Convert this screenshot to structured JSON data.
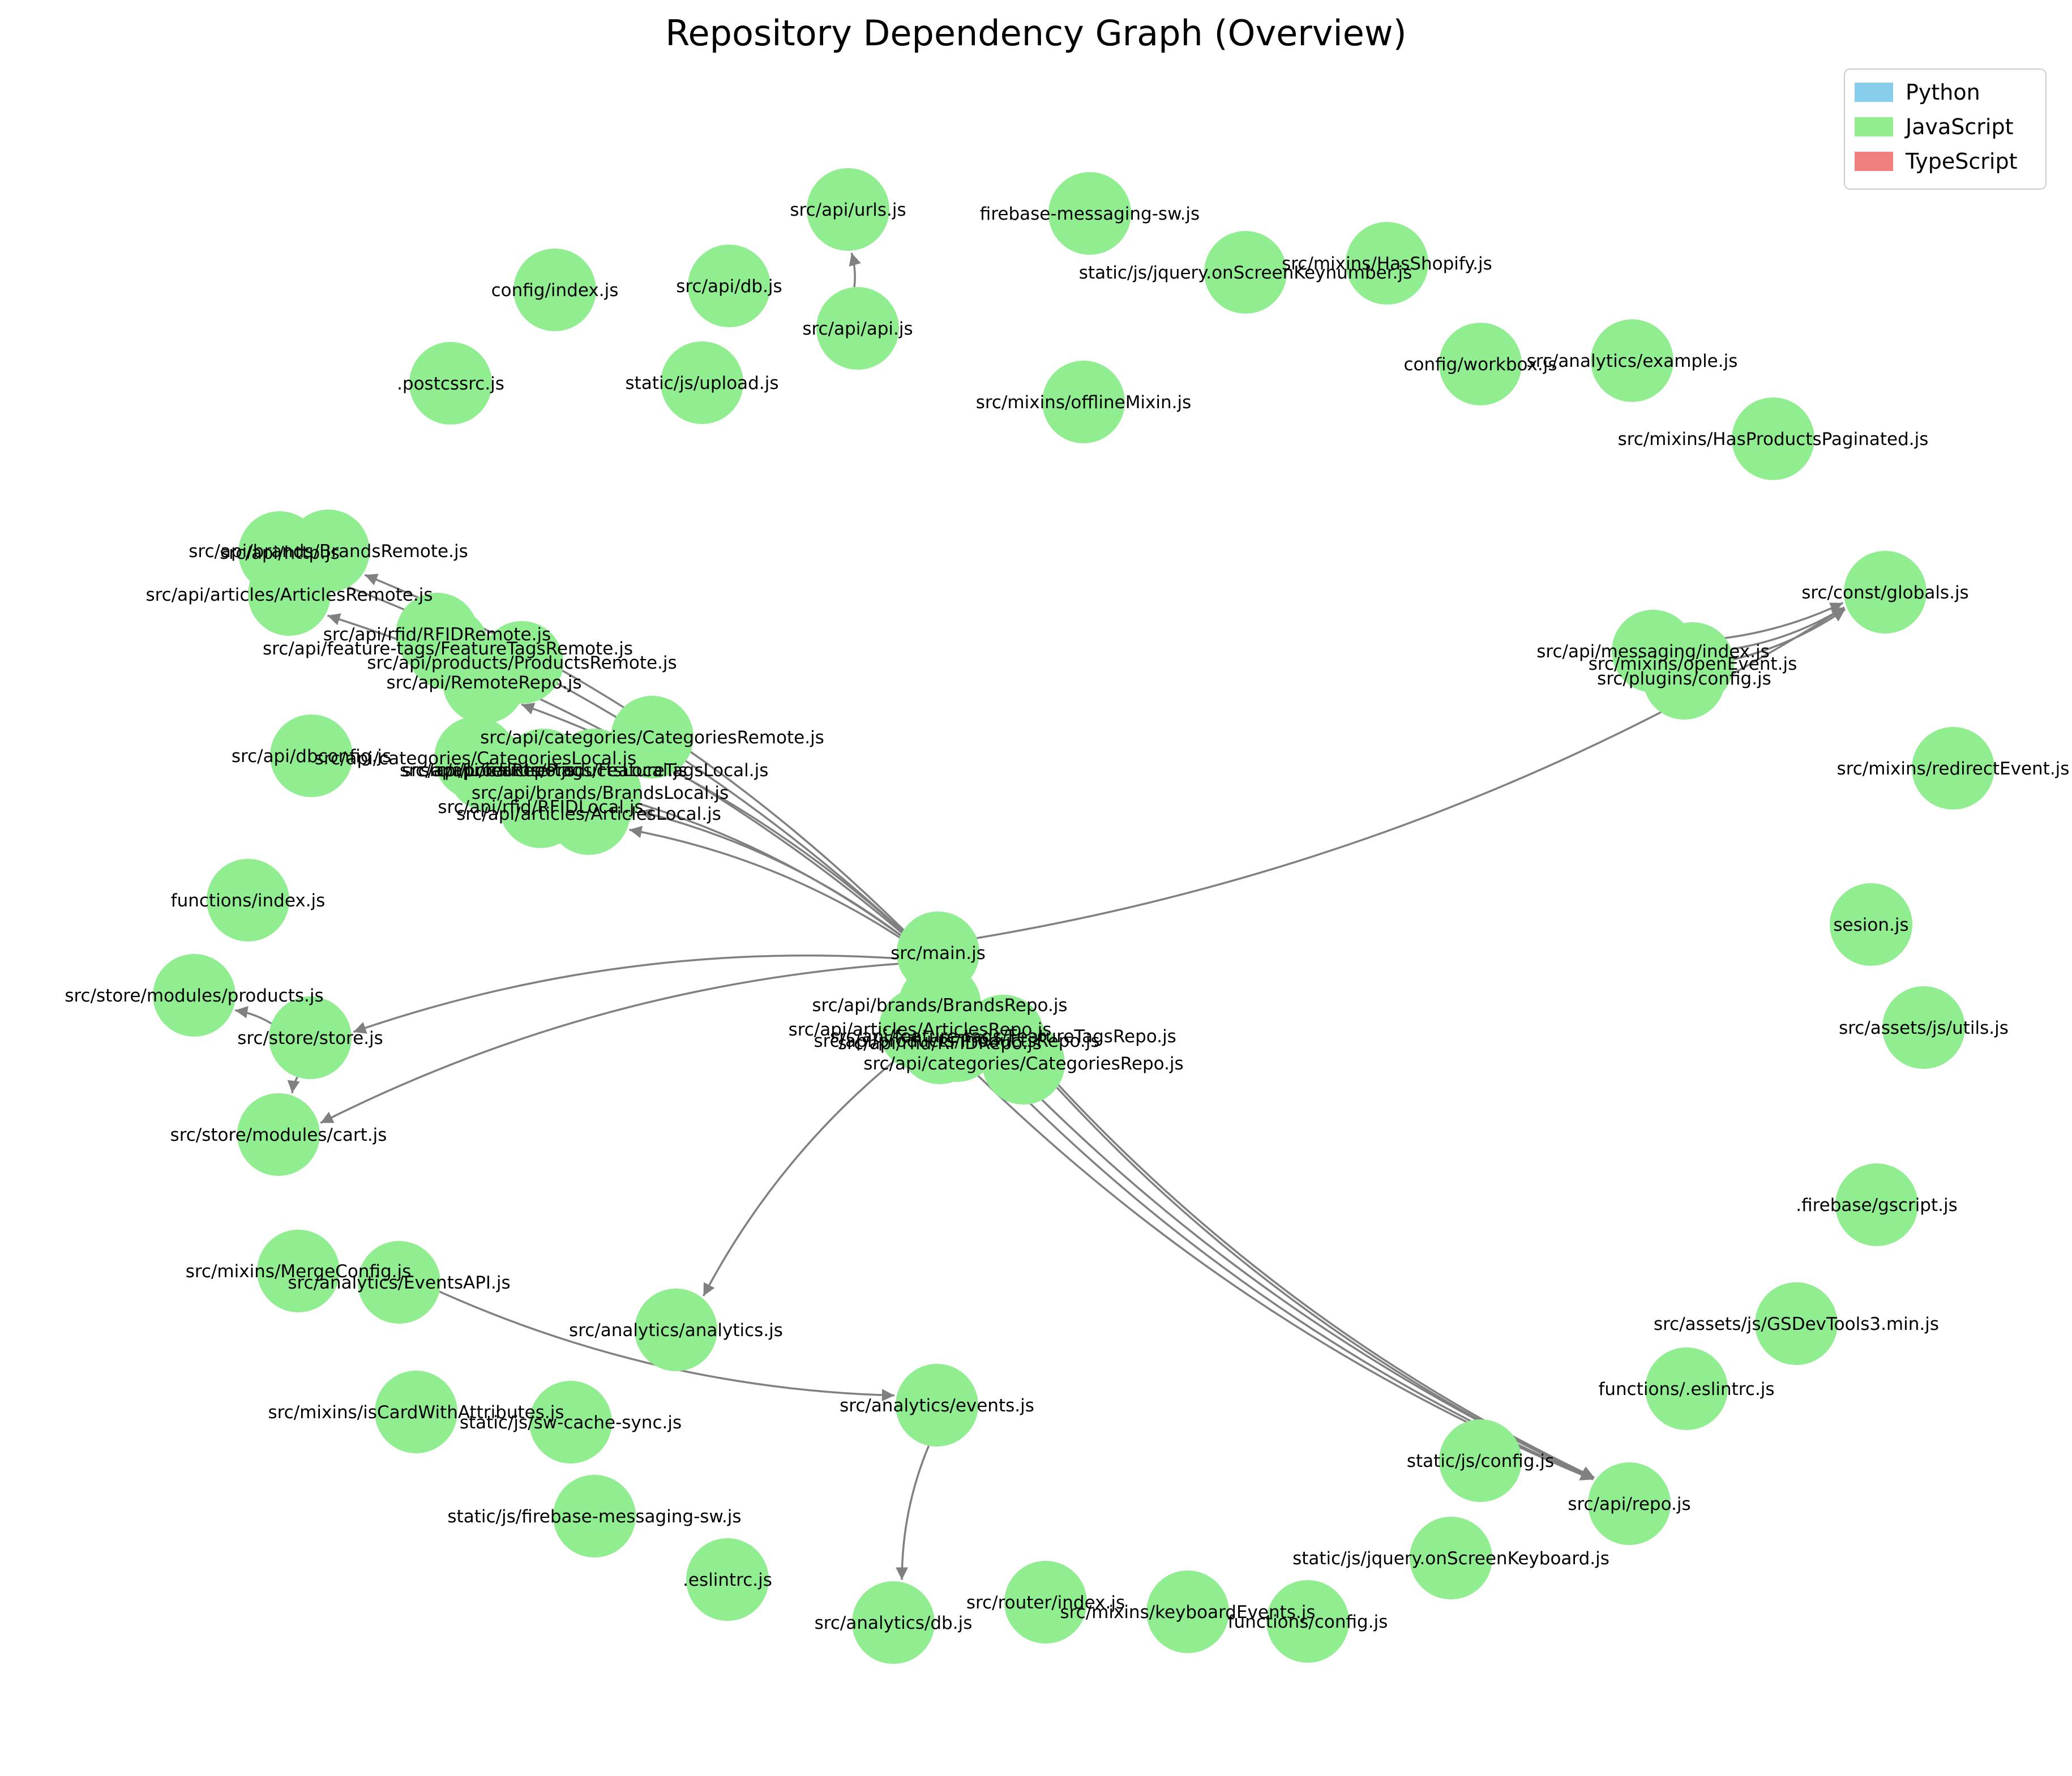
{
  "title": "Repository Dependency Graph (Overview)",
  "legend": [
    {
      "label": "Python",
      "color": "#87ceeb"
    },
    {
      "label": "JavaScript",
      "color": "#90ee90"
    },
    {
      "label": "TypeScript",
      "color": "#f08080"
    }
  ],
  "node_color": "#90ee90",
  "edge_color": "#808080",
  "nodes": [
    {
      "id": "src/api/urls.js",
      "label": "src/api/urls.js"
    },
    {
      "id": "firebase-messaging-sw.js",
      "label": "firebase-messaging-sw.js"
    },
    {
      "id": "src/mixins/HasShopify.js",
      "label": "src/mixins/HasShopify.js"
    },
    {
      "id": "static/js/jquery.onScreenKeynumber.js",
      "label": "static/js/jquery.onScreenKeynumber.js"
    },
    {
      "id": "config/index.js",
      "label": "config/index.js"
    },
    {
      "id": "src/api/db.js",
      "label": "src/api/db.js"
    },
    {
      "id": "src/api/api.js",
      "label": "src/api/api.js"
    },
    {
      "id": "config/workbox.js",
      "label": "config/workbox.js"
    },
    {
      "id": "src/analytics/example.js",
      "label": "src/analytics/example.js"
    },
    {
      "id": ".postcssrc.js",
      "label": ".postcssrc.js"
    },
    {
      "id": "static/js/upload.js",
      "label": "static/js/upload.js"
    },
    {
      "id": "src/mixins/offlineMixin.js",
      "label": "src/mixins/offlineMixin.js"
    },
    {
      "id": "src/mixins/HasProductsPaginated.js",
      "label": "src/mixins/HasProductsPaginated.js"
    },
    {
      "id": "src/api/http.js",
      "label": "src/api/http.js"
    },
    {
      "id": "src/api/brands/BrandsRemote.js",
      "label": "src/api/brands/BrandsRemote.js"
    },
    {
      "id": "src/api/articles/ArticlesRemote.js",
      "label": "src/api/articles/ArticlesRemote.js"
    },
    {
      "id": "src/const/globals.js",
      "label": "src/const/globals.js"
    },
    {
      "id": "src/api/rfid/RFIDRemote.js",
      "label": "src/api/rfid/RFIDRemote.js"
    },
    {
      "id": "src/api/feature-tags/FeatureTagsRemote.js",
      "label": "src/api/feature-tags/FeatureTagsRemote.js"
    },
    {
      "id": "src/api/products/ProductsRemote.js",
      "label": "src/api/products/ProductsRemote.js"
    },
    {
      "id": "src/api/RemoteRepo.js",
      "label": "src/api/RemoteRepo.js"
    },
    {
      "id": "src/api/messaging/index.js",
      "label": "src/api/messaging/index.js"
    },
    {
      "id": "src/mixins/openEvent.js",
      "label": "src/mixins/openEvent.js"
    },
    {
      "id": "src/plugins/config.js",
      "label": "src/plugins/config.js"
    },
    {
      "id": "src/api/categories/CategoriesRemote.js",
      "label": "src/api/categories/CategoriesRemote.js"
    },
    {
      "id": "src/api/dbconfig.js",
      "label": "src/api/dbconfig.js"
    },
    {
      "id": "src/api/categories/CategoriesLocal.js",
      "label": "src/api/categories/CategoriesLocal.js"
    },
    {
      "id": "src/api/LocalRepo.js",
      "label": "src/api/LocalRepo.js"
    },
    {
      "id": "src/api/products/ProductsLocal.js",
      "label": "src/api/products/ProductsLocal.js"
    },
    {
      "id": "src/api/feature-tags/FeatureTagsLocal.js",
      "label": "src/api/feature-tags/FeatureTagsLocal.js"
    },
    {
      "id": "src/api/brands/BrandsLocal.js",
      "label": "src/api/brands/BrandsLocal.js"
    },
    {
      "id": "src/api/rfid/RFIDLocal.js",
      "label": "src/api/rfid/RFIDLocal.js"
    },
    {
      "id": "src/api/articles/ArticlesLocal.js",
      "label": "src/api/articles/ArticlesLocal.js"
    },
    {
      "id": "src/mixins/redirectEvent.js",
      "label": "src/mixins/redirectEvent.js"
    },
    {
      "id": "functions/index.js",
      "label": "functions/index.js"
    },
    {
      "id": "src/main.js",
      "label": "src/main.js"
    },
    {
      "id": "sesion.js",
      "label": "sesion.js"
    },
    {
      "id": "src/store/modules/products.js",
      "label": "src/store/modules/products.js"
    },
    {
      "id": "src/store/store.js",
      "label": "src/store/store.js"
    },
    {
      "id": "src/api/brands/BrandsRepo.js",
      "label": "src/api/brands/BrandsRepo.js"
    },
    {
      "id": "src/api/articles/ArticlesRepo.js",
      "label": "src/api/articles/ArticlesRepo.js"
    },
    {
      "id": "src/api/feature-tags/FeatureTagsRepo.js",
      "label": "src/api/feature-tags/FeatureTagsRepo.js"
    },
    {
      "id": "src/api/rfid/RFIDRepo.js",
      "label": "src/api/rfid/RFIDRepo.js"
    },
    {
      "id": "src/api/products/ProductsRepo.js",
      "label": "src/api/products/ProductsRepo.js"
    },
    {
      "id": "src/api/categories/CategoriesRepo.js",
      "label": "src/api/categories/CategoriesRepo.js"
    },
    {
      "id": "src/assets/js/utils.js",
      "label": "src/assets/js/utils.js"
    },
    {
      "id": "src/store/modules/cart.js",
      "label": "src/store/modules/cart.js"
    },
    {
      "id": ".firebase/gscript.js",
      "label": ".firebase/gscript.js"
    },
    {
      "id": "src/mixins/MergeConfig.js",
      "label": "src/mixins/MergeConfig.js"
    },
    {
      "id": "src/analytics/EventsAPI.js",
      "label": "src/analytics/EventsAPI.js"
    },
    {
      "id": "src/assets/js/GSDevTools3.min.js",
      "label": "src/assets/js/GSDevTools3.min.js"
    },
    {
      "id": "src/analytics/analytics.js",
      "label": "src/analytics/analytics.js"
    },
    {
      "id": "functions/.eslintrc.js",
      "label": "functions/.eslintrc.js"
    },
    {
      "id": "src/mixins/isCardWithAttributes.js",
      "label": "src/mixins/isCardWithAttributes.js"
    },
    {
      "id": "static/js/sw-cache-sync.js",
      "label": "static/js/sw-cache-sync.js"
    },
    {
      "id": "src/analytics/events.js",
      "label": "src/analytics/events.js"
    },
    {
      "id": "static/js/config.js",
      "label": "static/js/config.js"
    },
    {
      "id": "src/api/repo.js",
      "label": "src/api/repo.js"
    },
    {
      "id": "static/js/firebase-messaging-sw.js",
      "label": "static/js/firebase-messaging-sw.js"
    },
    {
      "id": "static/js/jquery.onScreenKeyboard.js",
      "label": "static/js/jquery.onScreenKeyboard.js"
    },
    {
      "id": ".eslintrc.js",
      "label": ".eslintrc.js"
    },
    {
      "id": "src/router/index.js",
      "label": "src/router/index.js"
    },
    {
      "id": "src/mixins/keyboardEvents.js",
      "label": "src/mixins/keyboardEvents.js"
    },
    {
      "id": "src/analytics/db.js",
      "label": "src/analytics/db.js"
    },
    {
      "id": "functions/config.js",
      "label": "functions/config.js"
    }
  ],
  "edges": [
    {
      "source": "src/api/api.js",
      "target": "src/api/urls.js"
    },
    {
      "source": "src/main.js",
      "target": "src/api/brands/BrandsRemote.js"
    },
    {
      "source": "src/main.js",
      "target": "src/api/http.js"
    },
    {
      "source": "src/main.js",
      "target": "src/api/articles/ArticlesRemote.js"
    },
    {
      "source": "src/main.js",
      "target": "src/api/RemoteRepo.js"
    },
    {
      "source": "src/main.js",
      "target": "src/api/products/ProductsLocal.js"
    },
    {
      "source": "src/main.js",
      "target": "src/api/brands/BrandsLocal.js"
    },
    {
      "source": "src/main.js",
      "target": "src/api/articles/ArticlesLocal.js"
    },
    {
      "source": "src/main.js",
      "target": "src/const/globals.js"
    },
    {
      "source": "src/api/messaging/index.js",
      "target": "src/const/globals.js"
    },
    {
      "source": "src/mixins/openEvent.js",
      "target": "src/const/globals.js"
    },
    {
      "source": "src/plugins/config.js",
      "target": "src/const/globals.js"
    },
    {
      "source": "src/main.js",
      "target": "src/store/store.js"
    },
    {
      "source": "src/main.js",
      "target": "src/store/modules/cart.js"
    },
    {
      "source": "src/store/store.js",
      "target": "src/store/modules/products.js"
    },
    {
      "source": "src/store/store.js",
      "target": "src/store/modules/cart.js"
    },
    {
      "source": "src/api/articles/ArticlesRepo.js",
      "target": "src/analytics/analytics.js"
    },
    {
      "source": "src/analytics/EventsAPI.js",
      "target": "src/analytics/events.js"
    },
    {
      "source": "src/analytics/events.js",
      "target": "src/analytics/db.js"
    },
    {
      "source": "src/api/brands/BrandsRepo.js",
      "target": "src/api/repo.js"
    },
    {
      "source": "src/api/articles/ArticlesRepo.js",
      "target": "src/api/repo.js"
    },
    {
      "source": "src/api/feature-tags/FeatureTagsRepo.js",
      "target": "src/api/repo.js"
    },
    {
      "source": "src/api/products/ProductsRepo.js",
      "target": "src/api/repo.js"
    },
    {
      "source": "src/api/categories/CategoriesRepo.js",
      "target": "src/api/repo.js"
    }
  ]
}
